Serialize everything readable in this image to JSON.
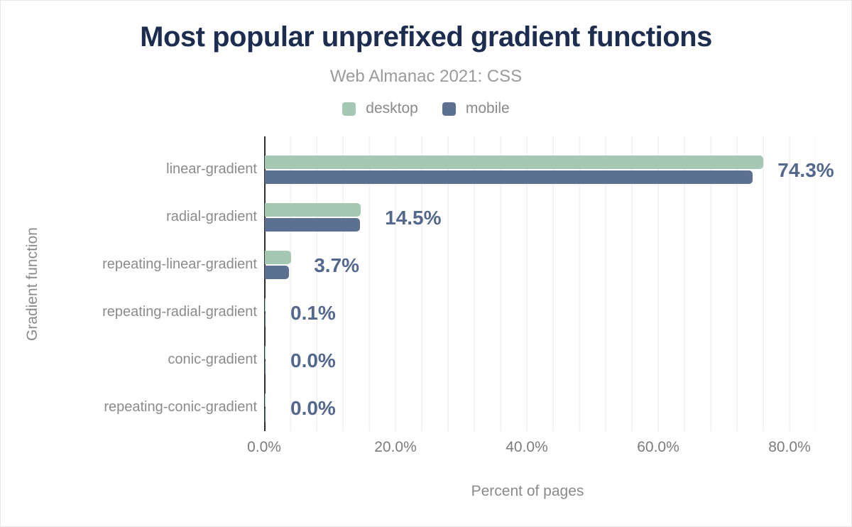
{
  "title": "Most popular unprefixed gradient functions",
  "subtitle": "Web Almanac 2021: CSS",
  "legend": [
    {
      "label": "desktop",
      "color": "#a4c8b3"
    },
    {
      "label": "mobile",
      "color": "#5c7191"
    }
  ],
  "x_axis": {
    "title": "Percent of pages",
    "ticks": [
      "0.0%",
      "20.0%",
      "40.0%",
      "60.0%",
      "80.0%"
    ]
  },
  "y_axis": {
    "title": "Gradient function"
  },
  "colors": {
    "title_text": "#1c2d4f",
    "subtitle_text": "#9b9b9b",
    "desktop_bar": "#a4c8b3",
    "mobile_bar": "#5c7191",
    "value_label_text": "#53688c",
    "category_label_text": "#8b8b8b",
    "axis_line": "#2d2d2d",
    "gridline": "#f0f0f0"
  },
  "chart_data": {
    "type": "bar",
    "orientation": "horizontal",
    "title": "Most popular unprefixed gradient functions",
    "subtitle": "Web Almanac 2021: CSS",
    "xlabel": "Percent of pages",
    "ylabel": "Gradient function",
    "xlim": [
      0,
      84
    ],
    "x_tick_step": 20,
    "grid": "vertical-minor",
    "legend_position": "top-center",
    "categories": [
      "linear-gradient",
      "radial-gradient",
      "repeating-linear-gradient",
      "repeating-radial-gradient",
      "conic-gradient",
      "repeating-conic-gradient"
    ],
    "series": [
      {
        "name": "desktop",
        "values": [
          75.9,
          14.6,
          4.0,
          0.1,
          0.0,
          0.0
        ]
      },
      {
        "name": "mobile",
        "values": [
          74.3,
          14.5,
          3.7,
          0.1,
          0.0,
          0.0
        ]
      }
    ],
    "value_labels": [
      "74.3%",
      "14.5%",
      "3.7%",
      "0.1%",
      "0.0%",
      "0.0%"
    ],
    "labeled_series": "mobile"
  }
}
